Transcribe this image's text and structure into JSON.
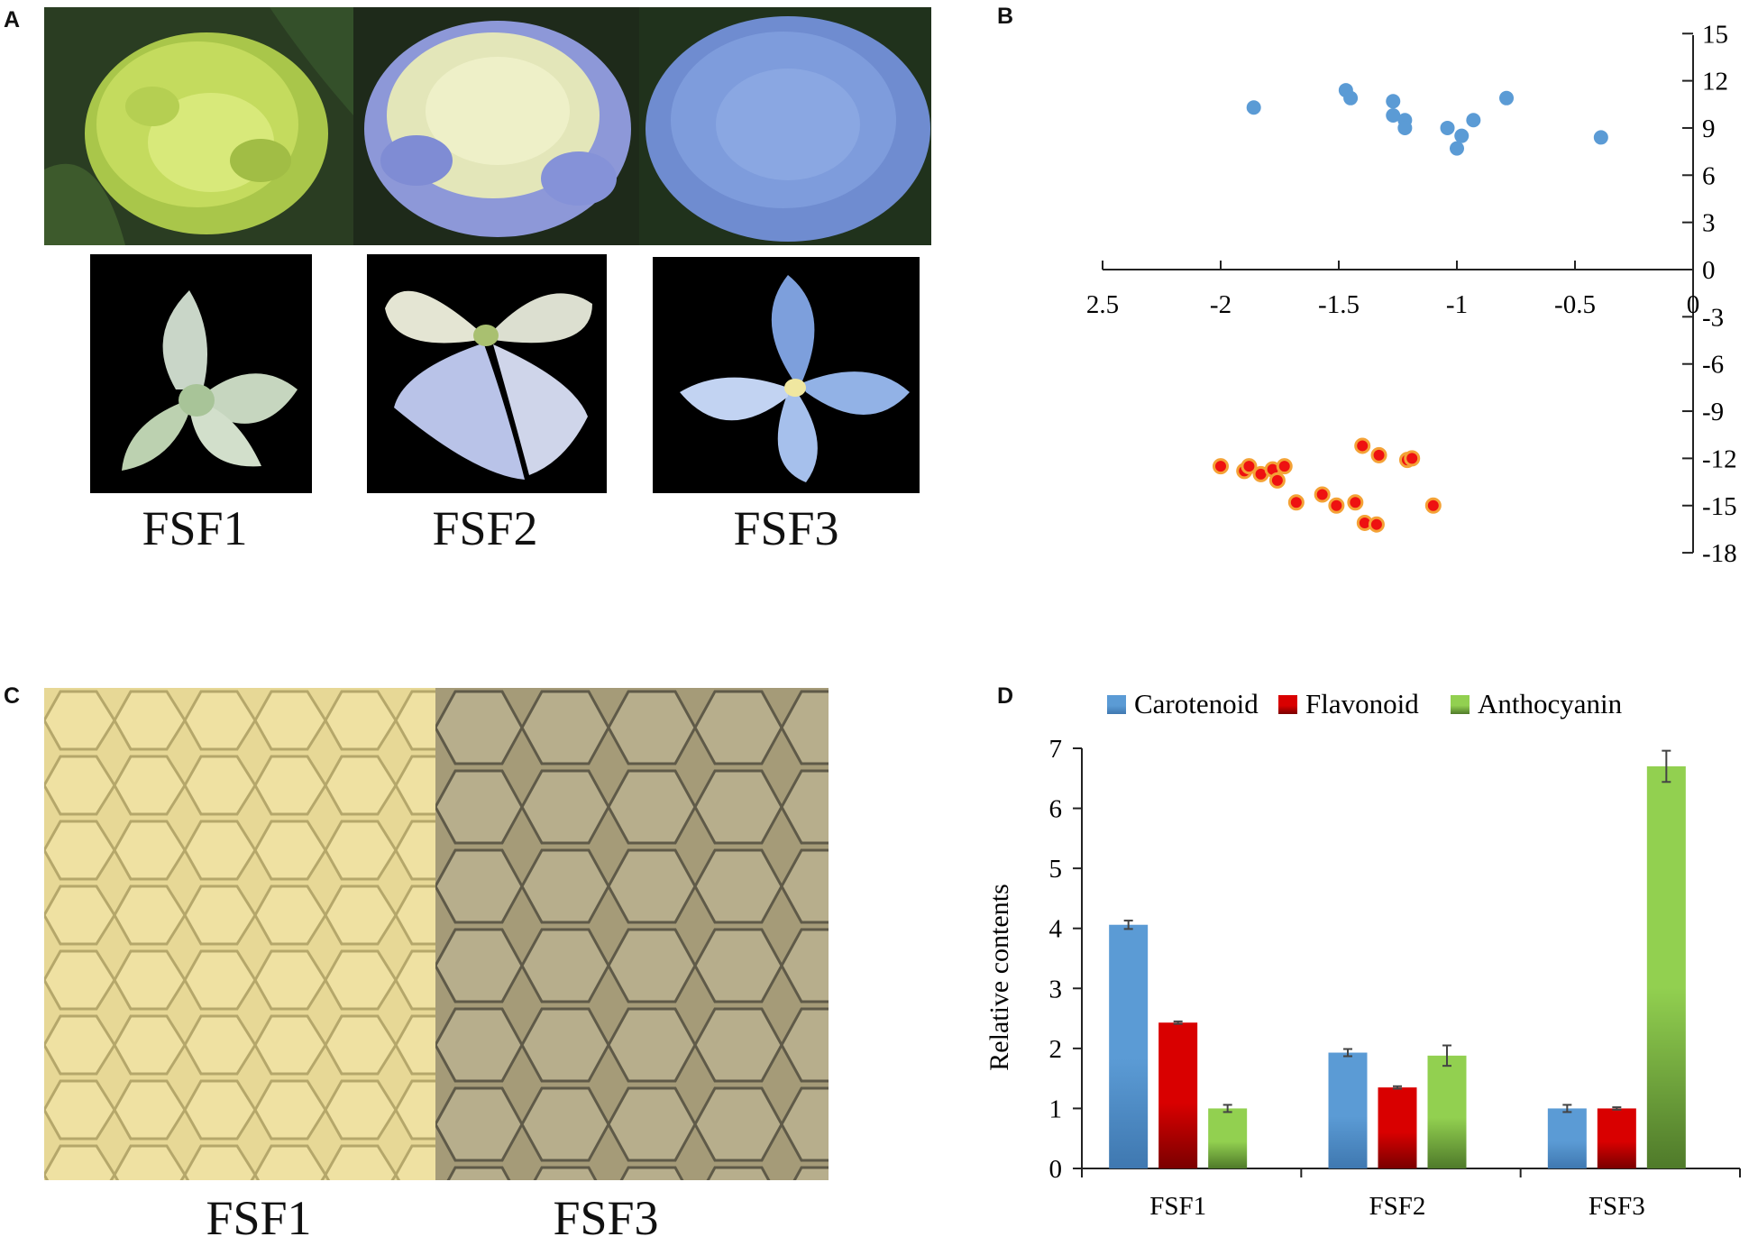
{
  "panels": {
    "a": {
      "letter": "A",
      "labels": [
        "FSF1",
        "FSF2",
        "FSF3"
      ]
    },
    "b": {
      "letter": "B",
      "x_ticks": [
        "2.5",
        "-2",
        "-1.5",
        "-1",
        "-0.5",
        "0"
      ],
      "y_ticks": [
        "15",
        "12",
        "9",
        "6",
        "3",
        "0",
        "-3",
        "-6",
        "-9",
        "-12",
        "-15",
        "-18"
      ]
    },
    "c": {
      "letter": "C",
      "labels": [
        "FSF1",
        "FSF3"
      ]
    },
    "d": {
      "letter": "D"
    }
  },
  "chart_data": [
    {
      "type": "scatter",
      "panel": "B",
      "xlim": [
        -2.5,
        0
      ],
      "ylim": [
        -18,
        15
      ],
      "series": [
        {
          "name": "group-blue",
          "color": "#5b9bd5",
          "points": [
            [
              -1.86,
              10.3
            ],
            [
              -1.47,
              11.4
            ],
            [
              -1.45,
              10.9
            ],
            [
              -1.27,
              10.7
            ],
            [
              -1.27,
              9.8
            ],
            [
              -1.22,
              9.5
            ],
            [
              -1.22,
              9.0
            ],
            [
              -1.04,
              9.0
            ],
            [
              -0.98,
              8.5
            ],
            [
              -1.0,
              7.7
            ],
            [
              -0.93,
              9.5
            ],
            [
              -0.79,
              10.9
            ],
            [
              -0.39,
              8.4
            ]
          ]
        },
        {
          "name": "group-red",
          "color": "#ee1111",
          "points": [
            [
              -2.0,
              -12.5
            ],
            [
              -1.9,
              -12.8
            ],
            [
              -1.88,
              -12.5
            ],
            [
              -1.83,
              -13.0
            ],
            [
              -1.78,
              -12.7
            ],
            [
              -1.76,
              -13.4
            ],
            [
              -1.73,
              -12.5
            ],
            [
              -1.68,
              -14.8
            ],
            [
              -1.57,
              -14.3
            ],
            [
              -1.51,
              -15.0
            ],
            [
              -1.43,
              -14.8
            ],
            [
              -1.4,
              -11.2
            ],
            [
              -1.33,
              -11.8
            ],
            [
              -1.39,
              -16.1
            ],
            [
              -1.34,
              -16.2
            ],
            [
              -1.21,
              -12.1
            ],
            [
              -1.19,
              -12.0
            ],
            [
              -1.1,
              -15.0
            ]
          ]
        }
      ]
    },
    {
      "type": "bar",
      "panel": "D",
      "ylabel": "Relative contents",
      "ylim": [
        0,
        7
      ],
      "yticks": [
        "0",
        "1",
        "2",
        "3",
        "4",
        "5",
        "6",
        "7"
      ],
      "categories": [
        "FSF1",
        "FSF2",
        "FSF3"
      ],
      "series": [
        {
          "name": "Carotenoid",
          "color": "#5b9bd5",
          "values": [
            4.06,
            1.93,
            1.0
          ],
          "errors": [
            0.07,
            0.06,
            0.06
          ]
        },
        {
          "name": "Flavonoid",
          "color": "#d90000",
          "values": [
            2.43,
            1.35,
            1.0
          ],
          "errors": [
            0.02,
            0.02,
            0.02
          ]
        },
        {
          "name": "Anthocyanin",
          "color": "#92d050",
          "values": [
            1.0,
            1.88,
            6.7
          ],
          "errors": [
            0.06,
            0.17,
            0.26
          ]
        }
      ]
    }
  ]
}
